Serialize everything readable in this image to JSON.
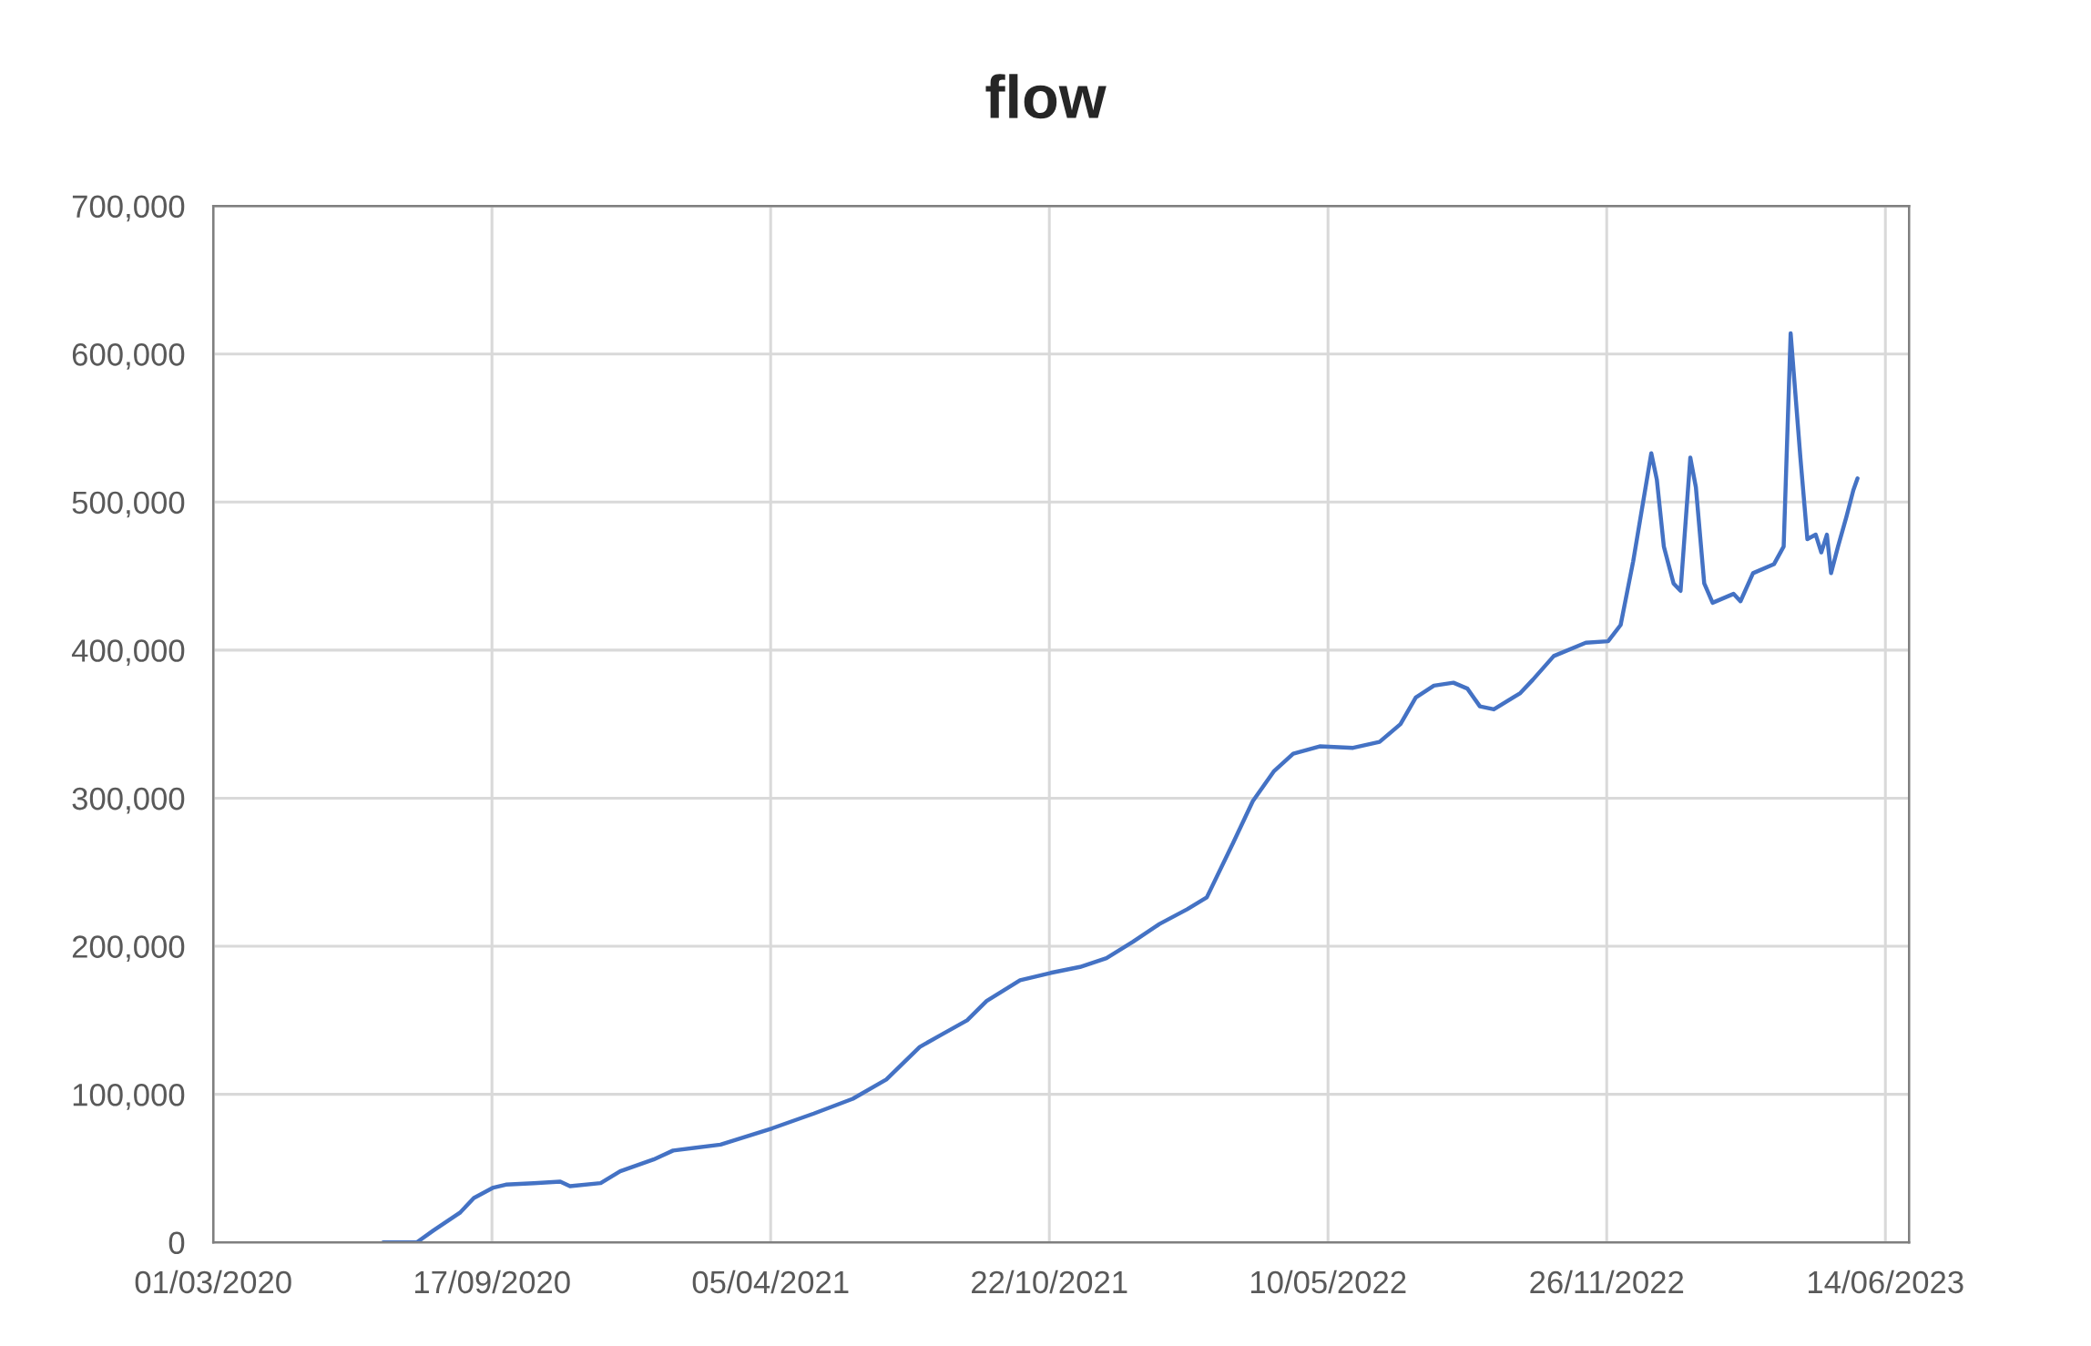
{
  "chart_data": {
    "type": "line",
    "title": "flow",
    "x": [
      "2020-07-01",
      "2020-07-18",
      "2020-07-25",
      "2020-08-06",
      "2020-08-25",
      "2020-09-04",
      "2020-09-18",
      "2020-09-27",
      "2020-10-17",
      "2020-11-05",
      "2020-11-12",
      "2020-12-04",
      "2020-12-18",
      "2021-01-11",
      "2021-01-25",
      "2021-02-28",
      "2021-04-06",
      "2021-05-06",
      "2021-06-03",
      "2021-06-27",
      "2021-07-21",
      "2021-08-05",
      "2021-08-24",
      "2021-09-07",
      "2021-10-01",
      "2021-10-23",
      "2021-11-13",
      "2021-12-02",
      "2021-12-21",
      "2022-01-09",
      "2022-01-29",
      "2022-02-12",
      "2022-03-03",
      "2022-03-17",
      "2022-04-01",
      "2022-04-15",
      "2022-05-04",
      "2022-05-28",
      "2022-06-16",
      "2022-07-01",
      "2022-07-12",
      "2022-07-25",
      "2022-08-08",
      "2022-08-18",
      "2022-08-27",
      "2022-09-06",
      "2022-09-25",
      "2022-10-04",
      "2022-10-19",
      "2022-11-11",
      "2022-11-27",
      "2022-12-06",
      "2022-12-15",
      "2022-12-28",
      "2023-01-01",
      "2023-01-06",
      "2023-01-13",
      "2023-01-18",
      "2023-01-25",
      "2023-01-29",
      "2023-02-04",
      "2023-02-10",
      "2023-02-25",
      "2023-03-02",
      "2023-03-11",
      "2023-03-26",
      "2023-04-02",
      "2023-04-07",
      "2023-04-14",
      "2023-04-19",
      "2023-04-25",
      "2023-04-29",
      "2023-05-03",
      "2023-05-06",
      "2023-05-11",
      "2023-05-17",
      "2023-05-22",
      "2023-05-25"
    ],
    "series": [
      {
        "color": "#4472c4",
        "values": [
          0,
          0,
          0,
          8000,
          20000,
          30000,
          37000,
          39000,
          40000,
          41000,
          38000,
          40000,
          48000,
          56000,
          62000,
          66000,
          77000,
          87000,
          97000,
          110000,
          132000,
          140000,
          150000,
          163000,
          177000,
          182000,
          186000,
          192000,
          203000,
          215000,
          225000,
          233000,
          270000,
          298000,
          318000,
          330000,
          335000,
          334000,
          338000,
          350000,
          368000,
          376000,
          378000,
          374000,
          362000,
          360000,
          371000,
          380000,
          396000,
          405000,
          406000,
          417000,
          460000,
          533000,
          515000,
          470000,
          445000,
          440000,
          530000,
          510000,
          445000,
          432000,
          438000,
          433000,
          452000,
          458000,
          470000,
          614000,
          530000,
          475000,
          478000,
          466000,
          478000,
          452000,
          470000,
          490000,
          508000,
          516000
        ]
      }
    ],
    "xlim": [
      "2020-03-01",
      "2023-07-01"
    ],
    "xticks": [
      {
        "value": "2020-03-01",
        "label": "01/03/2020"
      },
      {
        "value": "2020-09-17",
        "label": "17/09/2020"
      },
      {
        "value": "2021-04-05",
        "label": "05/04/2021"
      },
      {
        "value": "2021-10-22",
        "label": "22/10/2021"
      },
      {
        "value": "2022-05-10",
        "label": "10/05/2022"
      },
      {
        "value": "2022-11-26",
        "label": "26/11/2022"
      },
      {
        "value": "2023-06-14",
        "label": "14/06/2023"
      }
    ],
    "ylim": [
      0,
      700000
    ],
    "yticks": [
      0,
      {
        "value": 100000,
        "label": "100,000"
      },
      {
        "value": 200000,
        "label": "200,000"
      },
      {
        "value": 300000,
        "label": "300,000"
      },
      {
        "value": 400000,
        "label": "400,000"
      },
      {
        "value": 500000,
        "label": "500,000"
      },
      {
        "value": 600000,
        "label": "600,000"
      },
      {
        "value": 700000,
        "label": "700,000"
      }
    ],
    "grid": true,
    "marker": "none",
    "line_style": "solid"
  }
}
